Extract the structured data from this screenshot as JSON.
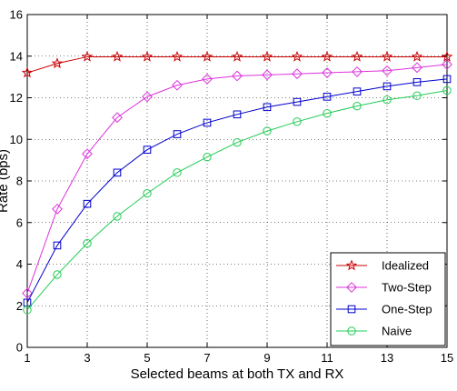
{
  "chart_data": {
    "type": "line",
    "xlabel": "Selected beams at both TX and RX",
    "ylabel": "Rate (bps)",
    "xlim": [
      1,
      15
    ],
    "ylim": [
      0,
      16
    ],
    "xticks": [
      1,
      3,
      5,
      7,
      9,
      11,
      13,
      15
    ],
    "yticks": [
      0,
      2,
      4,
      6,
      8,
      10,
      12,
      14,
      16
    ],
    "grid": true,
    "legend_position": "bottom-right",
    "x": [
      1,
      2,
      3,
      4,
      5,
      6,
      7,
      8,
      9,
      10,
      11,
      12,
      13,
      14,
      15
    ],
    "series": [
      {
        "name": "Idealized",
        "color": "#cc0000",
        "marker": "star",
        "values": [
          13.2,
          13.65,
          13.97,
          13.97,
          13.97,
          13.97,
          13.97,
          13.97,
          13.97,
          13.97,
          13.97,
          13.97,
          13.97,
          13.97,
          13.97
        ]
      },
      {
        "name": "Two-Step",
        "color": "#dd33dd",
        "marker": "diamond",
        "values": [
          2.6,
          6.65,
          9.3,
          11.05,
          12.05,
          12.6,
          12.9,
          13.05,
          13.1,
          13.15,
          13.2,
          13.25,
          13.3,
          13.45,
          13.6
        ]
      },
      {
        "name": "One-Step",
        "color": "#0000cc",
        "marker": "square",
        "values": [
          2.15,
          4.9,
          6.9,
          8.4,
          9.5,
          10.25,
          10.8,
          11.2,
          11.55,
          11.8,
          12.05,
          12.3,
          12.55,
          12.75,
          12.9
        ]
      },
      {
        "name": "Naive",
        "color": "#22cc55",
        "marker": "circle",
        "values": [
          1.8,
          3.5,
          5.0,
          6.3,
          7.4,
          8.4,
          9.15,
          9.85,
          10.4,
          10.85,
          11.25,
          11.6,
          11.9,
          12.1,
          12.35
        ]
      }
    ]
  }
}
